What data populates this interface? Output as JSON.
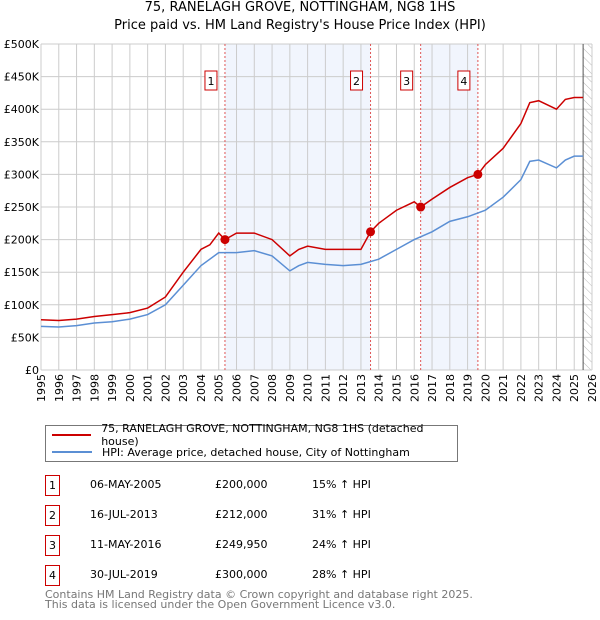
{
  "chart_data": {
    "type": "line",
    "title": "75, RANELAGH GROVE, NOTTINGHAM, NG8 1HS",
    "subtitle": "Price paid vs. HM Land Registry's House Price Index (HPI)",
    "xlabel": "",
    "ylabel": "",
    "xlim": [
      1995,
      2026
    ],
    "ylim": [
      0,
      500000
    ],
    "x_ticks": [
      1995,
      1996,
      1997,
      1998,
      1999,
      2000,
      2001,
      2002,
      2003,
      2004,
      2005,
      2006,
      2007,
      2008,
      2009,
      2010,
      2011,
      2012,
      2013,
      2014,
      2015,
      2016,
      2017,
      2018,
      2019,
      2020,
      2021,
      2022,
      2023,
      2024,
      2025,
      2026
    ],
    "y_ticks": [
      0,
      50000,
      100000,
      150000,
      200000,
      250000,
      300000,
      350000,
      400000,
      450000,
      500000
    ],
    "y_tick_labels": [
      "£0",
      "£50K",
      "£100K",
      "£150K",
      "£200K",
      "£250K",
      "£300K",
      "£350K",
      "£400K",
      "£450K",
      "£500K"
    ],
    "grid": true,
    "legend_placement": "bottom",
    "series": [
      {
        "name": "75, RANELAGH GROVE, NOTTINGHAM, NG8 1HS (detached house)",
        "color": "#cc0000",
        "x": [
          1995,
          1996,
          1997,
          1998,
          1999,
          2000,
          2001,
          2002,
          2003,
          2004,
          2004.5,
          2005,
          2005.35,
          2006,
          2007,
          2008,
          2009,
          2009.5,
          2010,
          2011,
          2012,
          2013,
          2013.54,
          2014,
          2015,
          2016,
          2016.36,
          2017,
          2018,
          2019,
          2019.58,
          2020,
          2021,
          2022,
          2022.5,
          2023,
          2024,
          2024.5,
          2025,
          2025.5
        ],
        "values": [
          77000,
          76000,
          78000,
          82000,
          85000,
          88000,
          95000,
          112000,
          150000,
          185000,
          192000,
          210000,
          200000,
          210000,
          210000,
          200000,
          175000,
          185000,
          190000,
          185000,
          185000,
          185000,
          212000,
          225000,
          245000,
          258000,
          249950,
          262000,
          280000,
          295000,
          300000,
          315000,
          340000,
          378000,
          410000,
          413000,
          400000,
          415000,
          418000,
          418000
        ]
      },
      {
        "name": "HPI: Average price, detached house, City of Nottingham",
        "color": "#5b8fd4",
        "x": [
          1995,
          1996,
          1997,
          1998,
          1999,
          2000,
          2001,
          2002,
          2003,
          2004,
          2005,
          2006,
          2007,
          2008,
          2009,
          2009.5,
          2010,
          2011,
          2012,
          2013,
          2014,
          2015,
          2016,
          2017,
          2018,
          2019,
          2020,
          2021,
          2022,
          2022.5,
          2023,
          2024,
          2024.5,
          2025,
          2025.5
        ],
        "values": [
          67000,
          66000,
          68000,
          72000,
          74000,
          78000,
          85000,
          100000,
          130000,
          160000,
          180000,
          180000,
          183000,
          175000,
          152000,
          160000,
          165000,
          162000,
          160000,
          162000,
          170000,
          185000,
          200000,
          212000,
          228000,
          235000,
          245000,
          265000,
          292000,
          320000,
          322000,
          310000,
          322000,
          328000,
          328000
        ]
      }
    ],
    "sales": [
      {
        "label": "1",
        "x": 2005.35,
        "value": 200000
      },
      {
        "label": "2",
        "x": 2013.54,
        "value": 212000
      },
      {
        "label": "3",
        "x": 2016.36,
        "value": 249950
      },
      {
        "label": "4",
        "x": 2019.58,
        "value": 300000
      }
    ],
    "shaded_ranges": [
      [
        2005.35,
        2013.54
      ],
      [
        2016.36,
        2019.58
      ]
    ],
    "hatched_from": 2025.5
  },
  "table": [
    {
      "num": "1",
      "date": "06-MAY-2005",
      "price": "£200,000",
      "hpi": "15% ↑ HPI"
    },
    {
      "num": "2",
      "date": "16-JUL-2013",
      "price": "£212,000",
      "hpi": "31% ↑ HPI"
    },
    {
      "num": "3",
      "date": "11-MAY-2016",
      "price": "£249,950",
      "hpi": "24% ↑ HPI"
    },
    {
      "num": "4",
      "date": "30-JUL-2019",
      "price": "£300,000",
      "hpi": "28% ↑ HPI"
    }
  ],
  "footer": {
    "line1": "Contains HM Land Registry data © Crown copyright and database right 2025.",
    "line2": "This data is licensed under the Open Government Licence v3.0."
  }
}
